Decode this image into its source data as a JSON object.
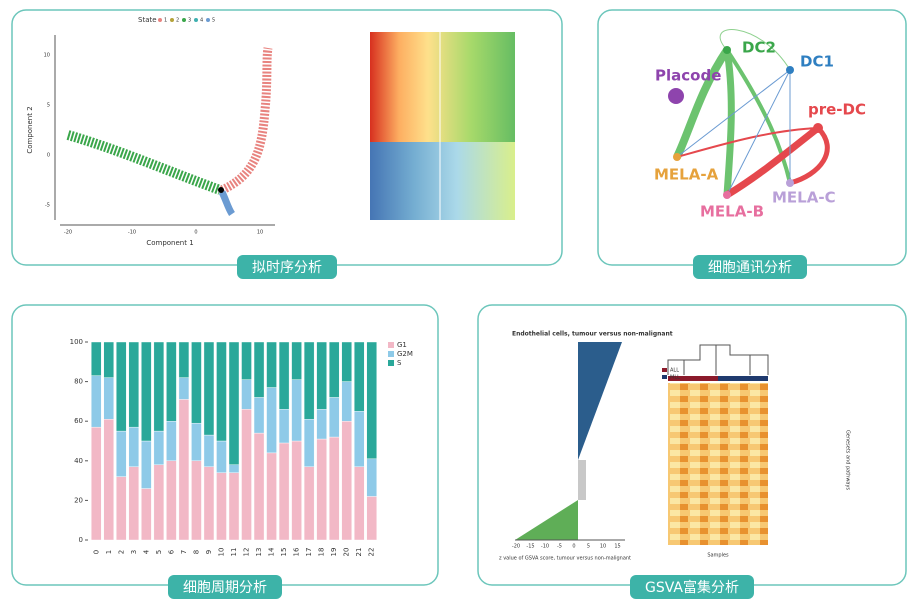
{
  "chart_data": {
    "type": "stacked_bar",
    "categories": [
      "0",
      "1",
      "2",
      "3",
      "4",
      "5",
      "6",
      "7",
      "8",
      "9",
      "10",
      "11",
      "12",
      "13",
      "14",
      "15",
      "16",
      "17",
      "18",
      "19",
      "20",
      "21",
      "22"
    ],
    "series": [
      {
        "name": "G1",
        "color": "#f2b8c6",
        "values": [
          57,
          61,
          32,
          37,
          26,
          38,
          40,
          71,
          40,
          37,
          34,
          34,
          66,
          54,
          44,
          49,
          50,
          37,
          51,
          52,
          60,
          37,
          22
        ]
      },
      {
        "name": "G2M",
        "color": "#8ecae8",
        "values": [
          26,
          21,
          23,
          20,
          24,
          17,
          20,
          11,
          19,
          16,
          16,
          4,
          15,
          18,
          33,
          17,
          31,
          24,
          15,
          20,
          20,
          28,
          19
        ]
      },
      {
        "name": "S",
        "color": "#2aa89a",
        "values": [
          17,
          18,
          45,
          43,
          50,
          45,
          40,
          18,
          41,
          47,
          50,
          62,
          19,
          28,
          23,
          34,
          19,
          39,
          34,
          28,
          20,
          35,
          59
        ]
      }
    ],
    "ylim": [
      0,
      100
    ],
    "yticks": [
      0,
      20,
      40,
      60,
      80,
      100
    ],
    "legend": "right"
  },
  "panels": [
    {
      "caption": "拟时序分析",
      "legend_title": "State",
      "legend": [
        "1",
        "2",
        "3",
        "4",
        "5"
      ],
      "x_label": "Component 1",
      "y_label": "Component 2",
      "x_ticks": [
        "-20",
        "-10",
        "0",
        "10"
      ],
      "y_ticks": [
        "-5",
        "0",
        "5",
        "10"
      ]
    },
    {
      "caption": "细胞通讯分析",
      "nodes": [
        "DC2",
        "DC1",
        "Placode",
        "pre-DC",
        "MELA-A",
        "MELA-B",
        "MELA-C"
      ]
    },
    {
      "caption": "细胞周期分析"
    },
    {
      "caption": "GSVA富集分析",
      "title": "Endothelial cells, tumour versus non-malignant",
      "x_label": "z value of GSVA score, tumour versus non-malignant",
      "x_ticks": [
        "-20",
        "-15",
        "-10",
        "-5",
        "0",
        "5",
        "10",
        "15"
      ],
      "legend": [
        "ALL",
        "MLL"
      ],
      "x_axis": "Samples",
      "y_axis": "Genesets and pathways"
    }
  ]
}
